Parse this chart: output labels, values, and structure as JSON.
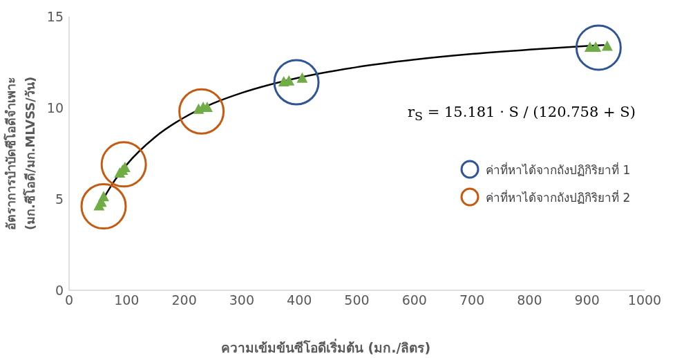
{
  "chart_data": {
    "type": "scatter",
    "xlabel": "ความเข้มข้นซีโอดีเริ่มต้น (มก./ลิตร)",
    "ylabel": "อัตราการบำบัดซีโอดีจำเพาะ\n(มก.ซีโอดี/มก.MLVSS/วัน)",
    "xlim": [
      0,
      1000
    ],
    "xticks": [
      0,
      100,
      200,
      300,
      400,
      500,
      600,
      700,
      800,
      900,
      1000
    ],
    "ylim": [
      0,
      15
    ],
    "yticks": [
      0,
      5,
      10,
      15
    ],
    "grid": false,
    "legend": "right",
    "annotations": [
      "r$_{S}$ = 15.181 · S / (120.758 + S)"
    ],
    "series": [
      {
        "type": "line",
        "color": "#000000",
        "marker": "none",
        "line_style": "solid",
        "x": [
          60,
          75,
          100,
          150,
          200,
          250,
          300,
          400,
          500,
          600,
          700,
          800,
          900,
          930
        ],
        "values": [
          5.04,
          5.82,
          6.88,
          8.41,
          9.47,
          10.24,
          10.82,
          11.66,
          12.23,
          12.64,
          12.95,
          13.19,
          13.39,
          13.44
        ]
      },
      {
        "color": "#70ad47",
        "marker": "triangle",
        "x": [
          52,
          56,
          60,
          88,
          93,
          97,
          225,
          233,
          240,
          373,
          382,
          405,
          905,
          915,
          935
        ],
        "values": [
          4.6,
          4.8,
          5.1,
          6.4,
          6.55,
          6.7,
          9.9,
          10.0,
          10.0,
          11.4,
          11.45,
          11.6,
          13.3,
          13.3,
          13.35
        ]
      },
      {
        "name": "ค่าที่หาได้จากถังปฏิกิริยาที่ 1",
        "color": "#2f5597",
        "marker": "circle",
        "x": [
          395,
          920
        ],
        "values": [
          11.4,
          13.3
        ]
      },
      {
        "name": "ค่าที่หาได้จากถังปฏิกิริยาที่ 2",
        "color": "#c55a11",
        "marker": "circle",
        "x": [
          60,
          95,
          230
        ],
        "values": [
          4.6,
          6.9,
          9.8
        ]
      }
    ]
  }
}
